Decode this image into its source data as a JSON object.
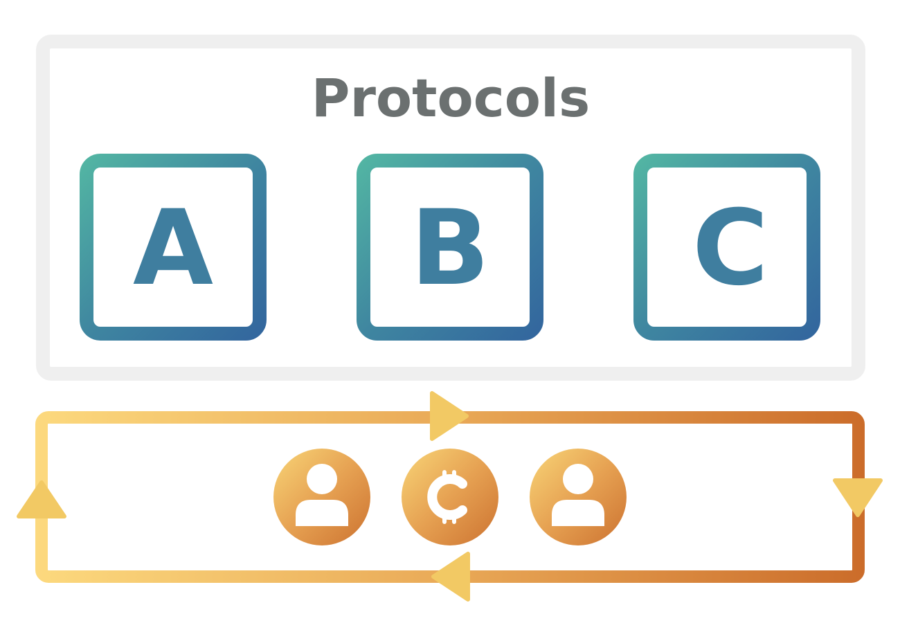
{
  "title": "Protocols",
  "protocols": [
    {
      "label": "A"
    },
    {
      "label": "B"
    },
    {
      "label": "C"
    }
  ],
  "flow": {
    "icons": [
      "user-icon",
      "bitcoin-icon",
      "user-icon"
    ],
    "direction": "clockwise"
  },
  "colors": {
    "panel_border": "#efefef",
    "title": "#6b7070",
    "protocol_gradient_start": "#52b4a3",
    "protocol_gradient_end": "#33679e",
    "protocol_letter": "#3f7e9f",
    "loop_gradient_start": "#fcd97e",
    "loop_gradient_end": "#cb6c2a",
    "arrow": "#f2c964",
    "icon_gradient_start": "#f6cd73",
    "icon_gradient_end": "#d07b32",
    "icon_glyph": "#ffffff"
  }
}
